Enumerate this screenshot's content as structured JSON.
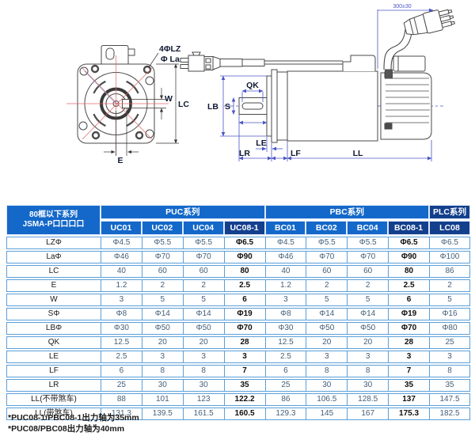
{
  "diagram": {
    "front_view": {
      "labels": {
        "holes": "4ΦLZ",
        "flange_circle": "Φ La",
        "keyway_width": "W",
        "flange_side": "LC",
        "offset": "E"
      }
    },
    "side_view": {
      "labels": {
        "cable_length": "300±30",
        "keyway_length": "QK",
        "pilot": "LB",
        "shaft": "S",
        "boss": "LE",
        "shaft_length": "LR",
        "flange_thickness": "LF",
        "body_length": "LL"
      }
    }
  },
  "table": {
    "header": {
      "series_title_line1": "80框以下系列",
      "series_title_line2": "JSMA-P口口口口",
      "groups": [
        {
          "label": "PUC系列",
          "span": 4
        },
        {
          "label": "PBC系列",
          "span": 4
        },
        {
          "label": "PLC系列",
          "span": 1
        }
      ],
      "models": [
        "UC01",
        "UC02",
        "UC04",
        "UC08-1",
        "BC01",
        "BC02",
        "BC04",
        "BC08-1",
        "LC08"
      ],
      "highlight_models": [
        "UC08-1",
        "BC08-1",
        "LC08"
      ]
    },
    "rows": [
      {
        "label": "LZΦ",
        "values": [
          "Φ4.5",
          "Φ5.5",
          "Φ5.5",
          "Φ6.5",
          "Φ4.5",
          "Φ5.5",
          "Φ5.5",
          "Φ6.5",
          "Φ6.5"
        ]
      },
      {
        "label": "LaΦ",
        "values": [
          "Φ46",
          "Φ70",
          "Φ70",
          "Φ90",
          "Φ46",
          "Φ70",
          "Φ70",
          "Φ90",
          "Φ100"
        ]
      },
      {
        "label": "LC",
        "values": [
          "40",
          "60",
          "60",
          "80",
          "40",
          "60",
          "60",
          "80",
          "86"
        ]
      },
      {
        "label": "E",
        "values": [
          "1.2",
          "2",
          "2",
          "2.5",
          "1.2",
          "2",
          "2",
          "2.5",
          "2"
        ]
      },
      {
        "label": "W",
        "values": [
          "3",
          "5",
          "5",
          "6",
          "3",
          "5",
          "5",
          "6",
          "5"
        ]
      },
      {
        "label": "SΦ",
        "values": [
          "Φ8",
          "Φ14",
          "Φ14",
          "Φ19",
          "Φ8",
          "Φ14",
          "Φ14",
          "Φ19",
          "Φ16"
        ]
      },
      {
        "label": "LBΦ",
        "values": [
          "Φ30",
          "Φ50",
          "Φ50",
          "Φ70",
          "Φ30",
          "Φ50",
          "Φ50",
          "Φ70",
          "Φ80"
        ]
      },
      {
        "label": "QK",
        "values": [
          "12.5",
          "20",
          "20",
          "28",
          "12.5",
          "20",
          "20",
          "28",
          "25"
        ]
      },
      {
        "label": "LE",
        "values": [
          "2.5",
          "3",
          "3",
          "3",
          "2.5",
          "3",
          "3",
          "3",
          "3"
        ]
      },
      {
        "label": "LF",
        "values": [
          "6",
          "8",
          "8",
          "7",
          "6",
          "8",
          "8",
          "7",
          "8"
        ]
      },
      {
        "label": "LR",
        "values": [
          "25",
          "30",
          "30",
          "35",
          "25",
          "30",
          "30",
          "35",
          "35"
        ]
      },
      {
        "label": "LL(不带煞车)",
        "values": [
          "88",
          "101",
          "123",
          "122.2",
          "86",
          "106.5",
          "128.5",
          "137",
          "147.5"
        ]
      },
      {
        "label": "LL(带煞车)",
        "values": [
          "131.3",
          "139.5",
          "161.5",
          "160.5",
          "129.3",
          "145",
          "167",
          "175.3",
          "182.5"
        ]
      }
    ]
  },
  "footnotes": [
    "*PUC08-1/PBC08-1出力轴为35mm",
    "*PUC08/PBC08出力轴为40mm"
  ],
  "colors": {
    "header_blue": "#1468c9",
    "header_dark_blue": "#133f8d",
    "grid_blue": "#5b9fd8",
    "value_text": "#44607a",
    "dimension_blue": "#4a55c5",
    "centerline_red": "#e06666",
    "outline_gray": "#4a4a4a"
  }
}
